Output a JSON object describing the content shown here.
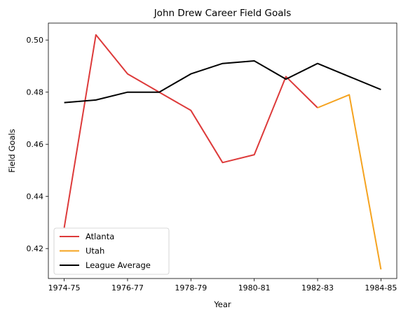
{
  "chart_data": {
    "type": "line",
    "title": "John Drew  Career Field Goals",
    "xlabel": "Year",
    "ylabel": "Field Goals",
    "x_tick_labels": [
      "1974-75",
      "1976-77",
      "1978-79",
      "1980-81",
      "1982-83",
      "1984-85"
    ],
    "y_tick_labels": [
      "0.42",
      "0.44",
      "0.46",
      "0.48",
      "0.50"
    ],
    "series": [
      {
        "name": "Atlanta",
        "color": "#dd3a3a",
        "points": [
          [
            0,
            0.428
          ],
          [
            1,
            0.502
          ],
          [
            2,
            0.487
          ],
          [
            3,
            0.48
          ],
          [
            4,
            0.473
          ],
          [
            5,
            0.453
          ],
          [
            6,
            0.456
          ],
          [
            7,
            0.486
          ],
          [
            8,
            0.474
          ]
        ]
      },
      {
        "name": "Utah",
        "color": "#f5a31f",
        "points": [
          [
            8,
            0.474
          ],
          [
            9,
            0.479
          ],
          [
            10,
            0.412
          ]
        ]
      },
      {
        "name": "League Average",
        "color": "#000000",
        "points": [
          [
            0,
            0.476
          ],
          [
            1,
            0.477
          ],
          [
            2,
            0.48
          ],
          [
            3,
            0.48
          ],
          [
            4,
            0.487
          ],
          [
            5,
            0.491
          ],
          [
            6,
            0.492
          ],
          [
            7,
            0.485
          ],
          [
            8,
            0.491
          ],
          [
            9,
            0.486
          ],
          [
            10,
            0.481
          ]
        ]
      }
    ],
    "legend_position": "lower-left",
    "grid": false
  }
}
